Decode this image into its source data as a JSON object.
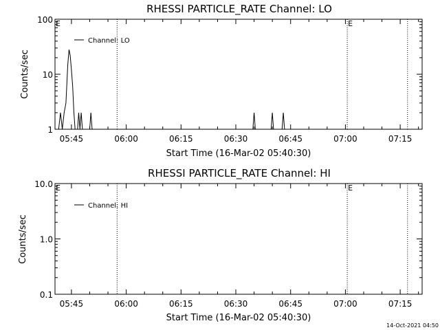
{
  "footer": {
    "timestamp": "14-Oct-2021 04:50"
  },
  "chart_data": [
    {
      "type": "line",
      "title": "RHESSI PARTICLE_RATE Channel: LO",
      "xlabel": "Start Time (16-Mar-02 05:40:30)",
      "ylabel": "Counts/sec",
      "yscale": "log",
      "ylim": [
        1,
        100
      ],
      "xlim": [
        "05:40:30",
        "07:21:00"
      ],
      "y_tick_labels": [
        "1",
        "10",
        "100"
      ],
      "y_tick_values": [
        1,
        10,
        100
      ],
      "x_tick_labels": [
        "05:45",
        "06:00",
        "06:15",
        "06:30",
        "06:45",
        "07:00",
        "07:15"
      ],
      "x_tick_values": [
        "05:45",
        "06:00",
        "06:15",
        "06:30",
        "06:45",
        "07:00",
        "07:15"
      ],
      "legend": {
        "position": "top-left",
        "entries": [
          "Channel: LO"
        ]
      },
      "event_markers": [
        {
          "time": "05:57:30",
          "label": ""
        },
        {
          "time": "07:00:30",
          "label": "E"
        },
        {
          "time": "07:17:00",
          "label": ""
        }
      ],
      "corner_label": "E",
      "series": [
        {
          "name": "Channel: LO",
          "x": [
            "05:41:00",
            "05:41:30",
            "05:42:00",
            "05:42:30",
            "05:43:00",
            "05:43:30",
            "05:44:00",
            "05:44:20",
            "05:44:40",
            "05:45:00",
            "05:45:20",
            "05:45:40",
            "05:46:00",
            "05:46:20",
            "05:46:40",
            "05:47:00",
            "05:47:20",
            "05:47:40",
            "05:48:00",
            "05:48:20",
            "05:48:40",
            "05:49:00",
            "05:49:20",
            "05:49:40",
            "05:50:00",
            "05:50:20",
            "05:50:40",
            "05:51:00",
            "06:34:40",
            "06:35:00",
            "06:35:20",
            "06:39:40",
            "06:40:00",
            "06:40:20",
            "06:42:40",
            "06:43:00",
            "06:43:20"
          ],
          "y": [
            1,
            1,
            2,
            1,
            2,
            3,
            15,
            28,
            22,
            12,
            6,
            2,
            1,
            1,
            1,
            2,
            1,
            2,
            1,
            1,
            1,
            1,
            1,
            1,
            1,
            2,
            1,
            1,
            1,
            2,
            1,
            1,
            2,
            1,
            1,
            2,
            1
          ]
        }
      ]
    },
    {
      "type": "line",
      "title": "RHESSI PARTICLE_RATE Channel: HI",
      "xlabel": "Start Time (16-Mar-02 05:40:30)",
      "ylabel": "Counts/sec",
      "yscale": "log",
      "ylim": [
        0.1,
        10
      ],
      "xlim": [
        "05:40:30",
        "07:21:00"
      ],
      "y_tick_labels": [
        "0.1",
        "1.0",
        "10.0"
      ],
      "y_tick_values": [
        0.1,
        1,
        10
      ],
      "x_tick_labels": [
        "05:45",
        "06:00",
        "06:15",
        "06:30",
        "06:45",
        "07:00",
        "07:15"
      ],
      "x_tick_values": [
        "05:45",
        "06:00",
        "06:15",
        "06:30",
        "06:45",
        "07:00",
        "07:15"
      ],
      "legend": {
        "position": "top-left",
        "entries": [
          "Channel: HI"
        ]
      },
      "event_markers": [
        {
          "time": "05:57:30",
          "label": ""
        },
        {
          "time": "07:00:30",
          "label": "E"
        },
        {
          "time": "07:17:00",
          "label": ""
        }
      ],
      "corner_label": "E",
      "series": [
        {
          "name": "Channel: HI",
          "x": [],
          "y": []
        }
      ]
    }
  ]
}
